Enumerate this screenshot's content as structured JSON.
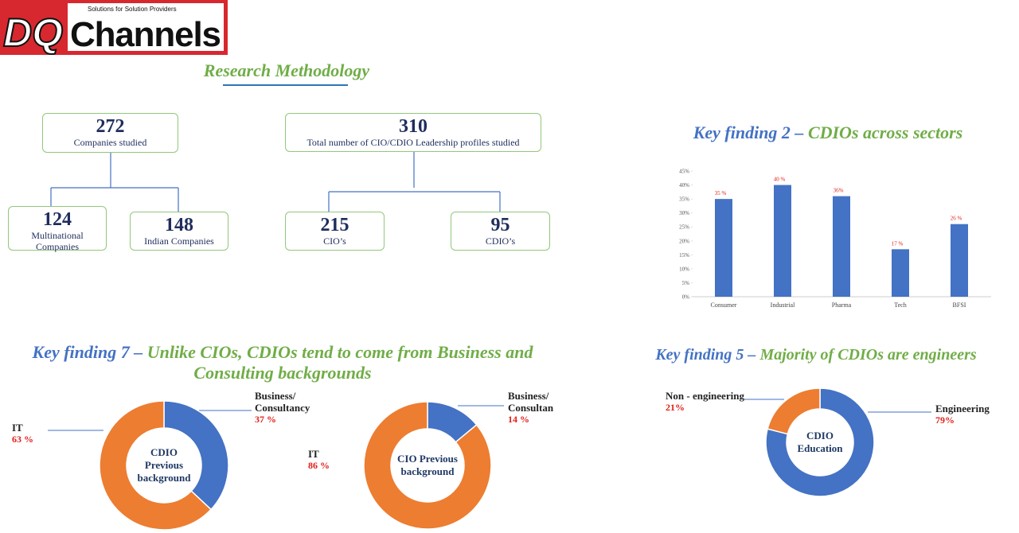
{
  "header": {
    "logo_left": "DQ",
    "logo_right": "Channels",
    "tagline": "Solutions for Solution Providers"
  },
  "methodology": {
    "title": "Research Methodology",
    "nodes": [
      {
        "value": 272,
        "label": "Companies studied"
      },
      {
        "value": 124,
        "label": "Multinational Companies"
      },
      {
        "value": 148,
        "label": "Indian Companies"
      },
      {
        "value": 310,
        "label": "Total number of CIO/CDIO Leadership profiles studied"
      },
      {
        "value": 215,
        "label": "CIO’s"
      },
      {
        "value": 95,
        "label": "CDIO’s"
      }
    ]
  },
  "chart_data": [
    {
      "type": "bar",
      "title": [
        "Key finding 2 –",
        "CDIOs across sectors"
      ],
      "categories": [
        "Consumer",
        "Industrial",
        "Pharma",
        "Tech",
        "BFSI"
      ],
      "values": [
        35,
        40,
        36,
        17,
        26
      ],
      "value_labels": [
        "35 %",
        "40 %",
        "36%",
        "17 %",
        "26 %"
      ],
      "color": "#4472c4",
      "ylim": [
        0,
        45
      ],
      "yticks": [
        {
          "value": 0,
          "label": "0%"
        },
        {
          "value": 5,
          "label": "5%"
        },
        {
          "value": 10,
          "label": "10%"
        },
        {
          "value": 15,
          "label": "15%"
        },
        {
          "value": 20,
          "label": "20%"
        },
        {
          "value": 25,
          "label": "25%"
        },
        {
          "value": 30,
          "label": "30%"
        },
        {
          "value": 35,
          "label": "35%"
        },
        {
          "value": 40,
          "label": "40%"
        },
        {
          "value": 45,
          "label": "45%"
        }
      ]
    },
    {
      "type": "donut",
      "title": [
        "Key finding 7 –",
        "Unlike CIOs, CDIOs tend to come from Business and Consulting backgrounds"
      ],
      "center_label": "CDIO Previous background",
      "categories": [
        "Business/ Consultancy",
        "IT"
      ],
      "values": [
        37,
        63
      ],
      "value_labels": [
        "37 %",
        "63 %"
      ],
      "colors": [
        "#4472c4",
        "#ed7d31"
      ]
    },
    {
      "type": "donut",
      "center_label": "CIO Previous background",
      "categories": [
        "Business/ Consultan",
        "IT"
      ],
      "values": [
        14,
        86
      ],
      "value_labels": [
        "14 %",
        "86 %"
      ],
      "colors": [
        "#4472c4",
        "#ed7d31"
      ]
    },
    {
      "type": "donut",
      "title": [
        "Key finding 5 –",
        "Majority of CDIOs are engineers"
      ],
      "center_label": "CDIO Education",
      "categories": [
        "Engineering",
        "Non - engineering"
      ],
      "values": [
        79,
        21
      ],
      "value_labels": [
        "79%",
        "21%"
      ],
      "colors": [
        "#4472c4",
        "#ed7d31"
      ]
    }
  ]
}
